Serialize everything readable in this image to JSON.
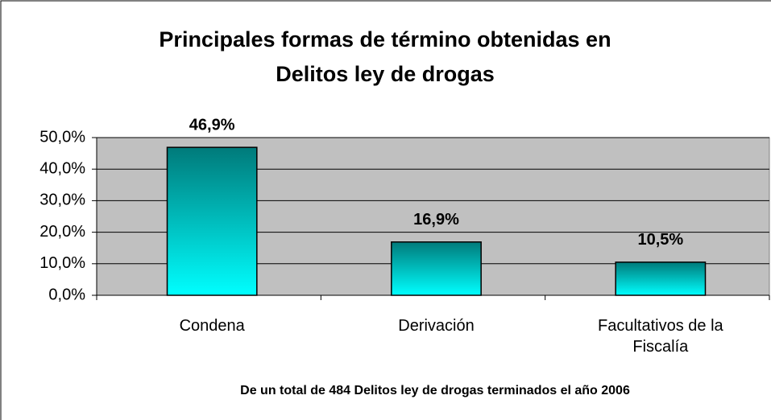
{
  "chart_data": {
    "type": "bar",
    "title": [
      "Principales formas de término obtenidas en",
      "Delitos ley de drogas"
    ],
    "categories": [
      "Condena",
      "Derivación",
      "Facultativos de la Fiscalía"
    ],
    "values": [
      46.9,
      16.9,
      10.5
    ],
    "value_labels": [
      "46,9%",
      "16,9%",
      "10,5%"
    ],
    "gradient": [
      "#007a7a",
      "#00ffff"
    ],
    "ylim": [
      0,
      50
    ],
    "yticks": [
      {
        "value": 0,
        "label": "0,0%"
      },
      {
        "value": 10,
        "label": "10,0%"
      },
      {
        "value": 20,
        "label": "20,0%"
      },
      {
        "value": 30,
        "label": "30,0%"
      },
      {
        "value": 40,
        "label": "40,0%"
      },
      {
        "value": 50,
        "label": "50,0%"
      }
    ],
    "grid": true,
    "plot_background": "#c0c0c0",
    "footnote": "De un total de 484 Delitos ley de drogas terminados el año 2006"
  }
}
